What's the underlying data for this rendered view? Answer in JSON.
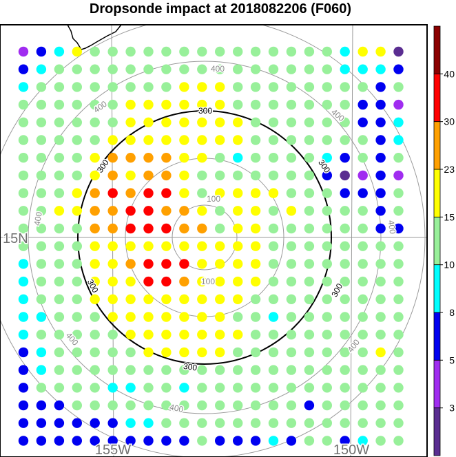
{
  "chart_data": {
    "type": "scatter",
    "title": "Dropsonde impact at 2018082206 (F060)",
    "lat_labels": [
      "15N"
    ],
    "lon_labels": [
      "155W",
      "150W"
    ],
    "range_rings": [
      "100",
      "200",
      "300",
      "400"
    ],
    "highlight_ring_label": "300",
    "colorbar": {
      "labels": [
        "3",
        "5",
        "8",
        "10",
        "15",
        "23",
        "30",
        "40"
      ],
      "bins": [
        {
          "range": "<3",
          "color": "#5a2d91"
        },
        {
          "range": "3-5",
          "color": "#a02cf0"
        },
        {
          "range": "5-8",
          "color": "#0000f0"
        },
        {
          "range": "8-10",
          "color": "#00ffff"
        },
        {
          "range": "10-15",
          "color": "#98f09a"
        },
        {
          "range": "15-23",
          "color": "#ffff00"
        },
        {
          "range": "23-30",
          "color": "#ffa000"
        },
        {
          "range": "30-40",
          "color": "#ff0000"
        },
        {
          "range": ">40",
          "color": "#8b0000"
        }
      ]
    },
    "grid_columns": 22,
    "grid_rows": 23,
    "bin_index_grid": [
      "1235444444444444443550",
      "2344444444444444443332",
      "3444444445554444444424",
      "4444445555554444444221",
      "4444445555555444444223",
      "4444455555555444444423",
      "4444566665543444432424",
      "4444565665444444420121",
      "4445676775455554442224",
      "4455667766545545444424",
      "4444667776645544444422",
      "4444555555555544444444",
      "3444556777555544444444",
      "3444555776555544444444",
      "3444555555555444444444",
      "3344455555554434444444",
      "3444445555555444444444",
      "2344444555554444444454",
      "2344444444444444444444",
      "2444433443444444444444",
      "2224444444444444244444",
      "2222223344444444444444",
      "2222222222422232442344"
    ]
  }
}
